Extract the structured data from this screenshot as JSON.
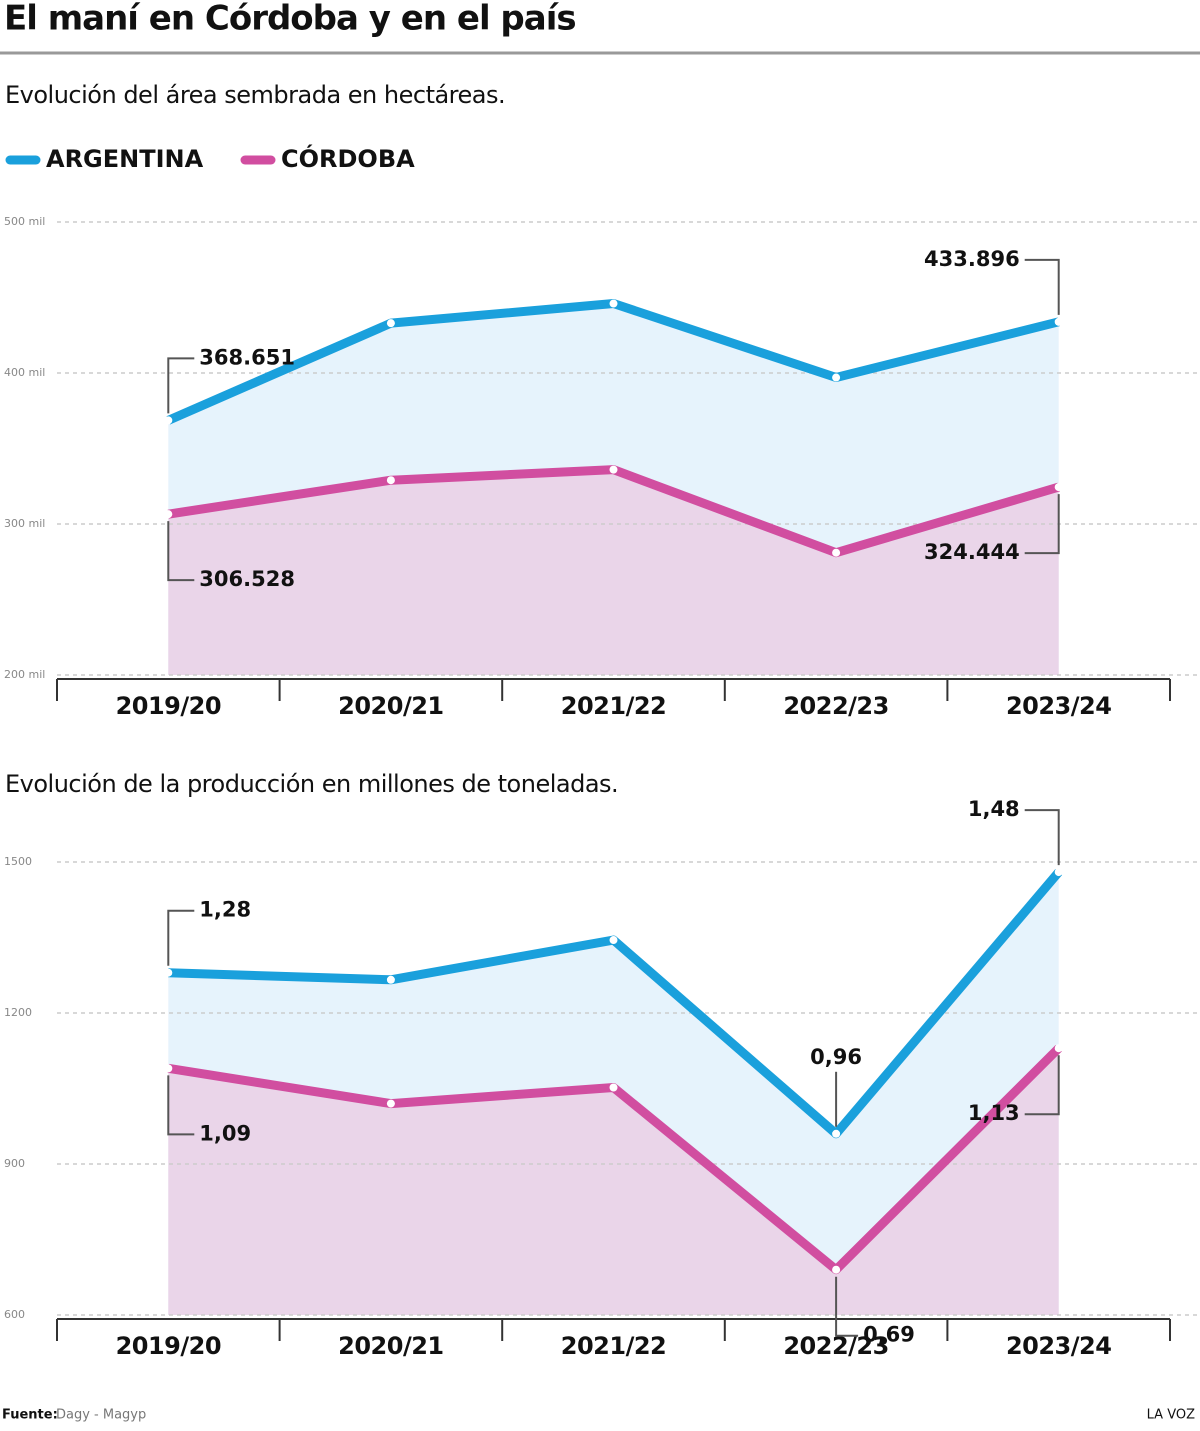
{
  "title": "El maní en Córdoba y en el país",
  "footer": {
    "source_label": "Fuente:",
    "source": "Dagy - Magyp",
    "brand": "LA VOZ"
  },
  "chart_data": [
    {
      "type": "line",
      "title": "Evolución del área sembrada en hectáreas.",
      "legend": true,
      "categories": [
        "2019/20",
        "2020/21",
        "2021/22",
        "2022/23",
        "2023/24"
      ],
      "series": [
        {
          "name": "ARGENTINA",
          "color": "#1aa0dc",
          "area": "#e6f3fc",
          "values": [
            368651,
            433000,
            446000,
            397000,
            433896
          ],
          "value_labels": [
            "368.651",
            null,
            null,
            null,
            "433.896"
          ]
        },
        {
          "name": "CÓRDOBA",
          "color": "#d14ea0",
          "area": "#ead5e9",
          "values": [
            306528,
            329000,
            336000,
            281000,
            324444
          ],
          "value_labels": [
            "306.528",
            null,
            null,
            null,
            "324.444"
          ]
        }
      ],
      "ylim": [
        200000,
        500000
      ],
      "yticks": [
        {
          "value": 200000,
          "label": "200 mil"
        },
        {
          "value": 300000,
          "label": "300 mil"
        },
        {
          "value": 400000,
          "label": "400 mil"
        },
        {
          "value": 500000,
          "label": "500 mil"
        }
      ],
      "grid": true
    },
    {
      "type": "line",
      "title": "Evolución de la producción en millones de toneladas.",
      "categories": [
        "2019/20",
        "2020/21",
        "2021/22",
        "2022/23",
        "2023/24"
      ],
      "series": [
        {
          "color": "#1aa0dc",
          "area": "#e6f3fc",
          "values": [
            1280,
            1266,
            1345,
            960,
            1480
          ],
          "value_labels": [
            "1,28",
            null,
            null,
            "0,96",
            "1,48"
          ]
        },
        {
          "color": "#d14ea0",
          "area": "#ead5e9",
          "values": [
            1090,
            1020,
            1052,
            690,
            1130
          ],
          "value_labels": [
            "1,09",
            null,
            null,
            "0,69",
            "1,13"
          ]
        }
      ],
      "ylim": [
        600,
        1500
      ],
      "yticks": [
        600,
        900,
        1200,
        1500
      ],
      "grid": true
    }
  ]
}
